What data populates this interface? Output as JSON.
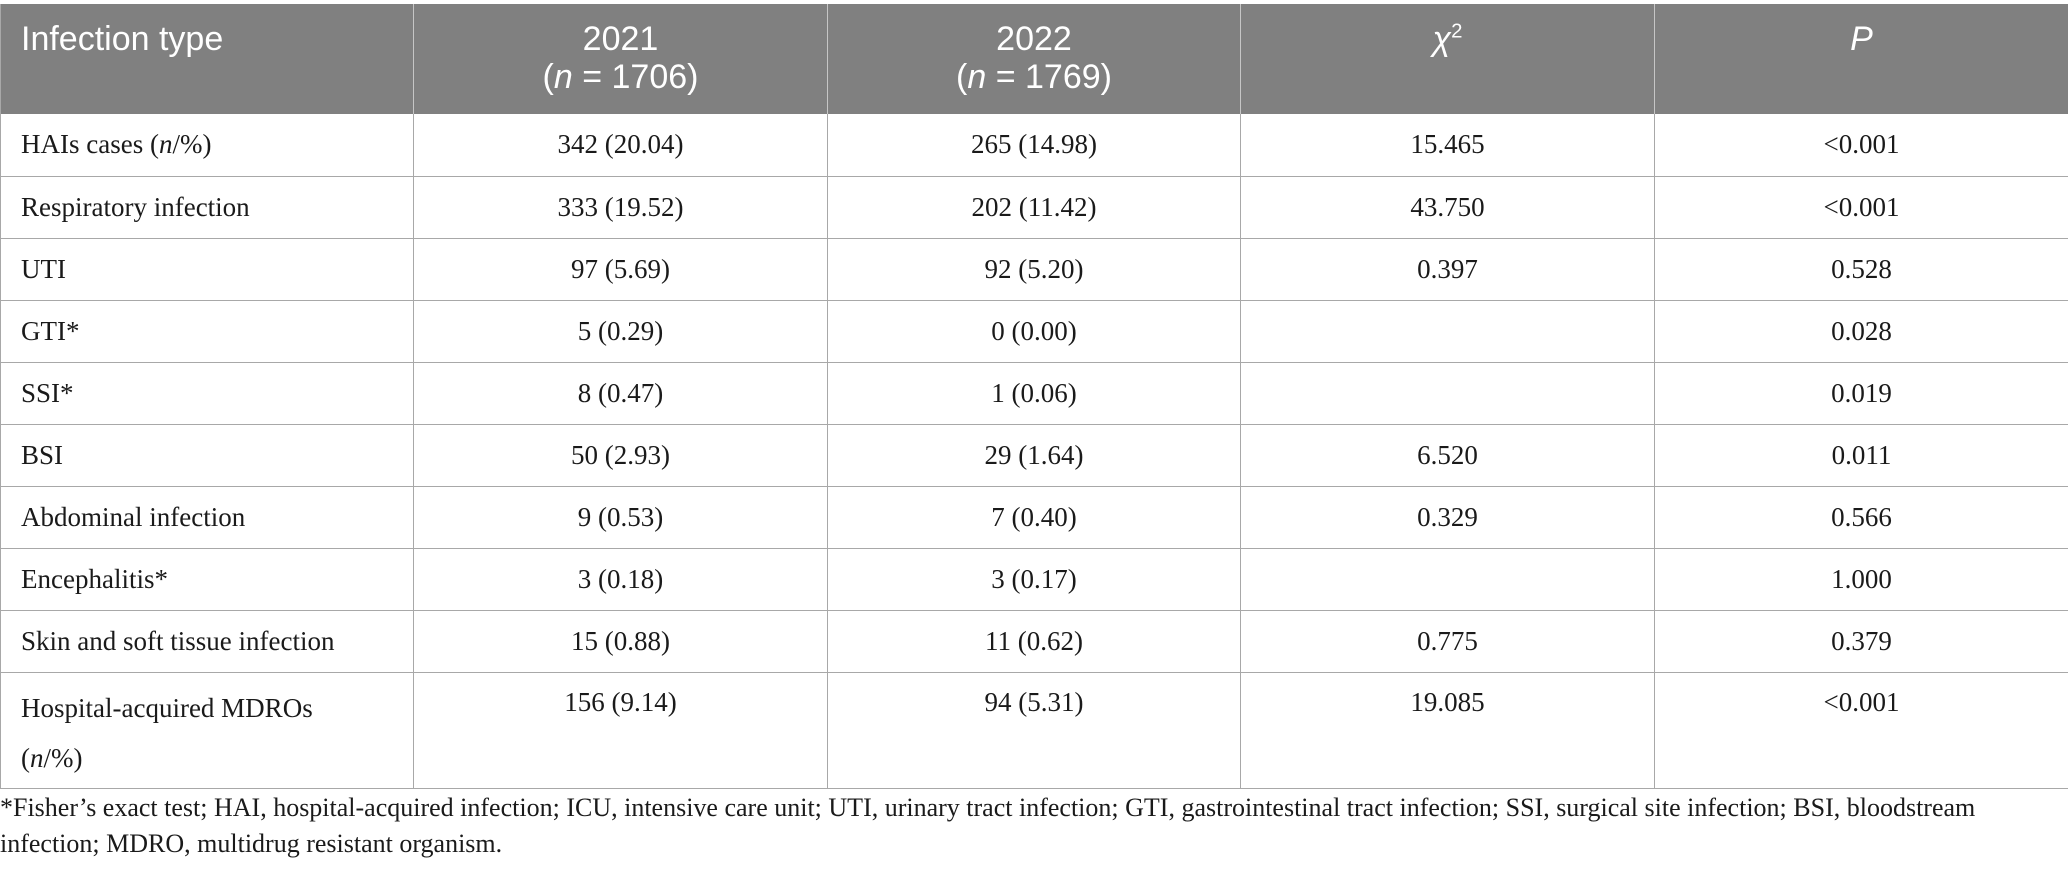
{
  "table": {
    "headers": {
      "infection_type": "Infection type",
      "y2021": "2021",
      "y2021_n": "(n = 1706)",
      "y2022": "2022",
      "y2022_n": "(n = 1769)",
      "chi2_symbol": "χ",
      "chi2_exponent": "2",
      "p": "P"
    },
    "rows": [
      {
        "label_pre": "HAIs cases (",
        "label_italic": "n",
        "label_post": "/%)",
        "y2021": "342 (20.04)",
        "y2022": "265 (14.98)",
        "chi2": "15.465",
        "p": "<0.001"
      },
      {
        "label_pre": "Respiratory infection",
        "label_italic": "",
        "label_post": "",
        "y2021": "333 (19.52)",
        "y2022": "202 (11.42)",
        "chi2": "43.750",
        "p": "<0.001"
      },
      {
        "label_pre": "UTI",
        "label_italic": "",
        "label_post": "",
        "y2021": "97 (5.69)",
        "y2022": "92 (5.20)",
        "chi2": "0.397",
        "p": "0.528"
      },
      {
        "label_pre": "GTI*",
        "label_italic": "",
        "label_post": "",
        "y2021": "5 (0.29)",
        "y2022": "0 (0.00)",
        "chi2": "",
        "p": "0.028"
      },
      {
        "label_pre": "SSI*",
        "label_italic": "",
        "label_post": "",
        "y2021": "8 (0.47)",
        "y2022": "1 (0.06)",
        "chi2": "",
        "p": "0.019"
      },
      {
        "label_pre": "BSI",
        "label_italic": "",
        "label_post": "",
        "y2021": "50 (2.93)",
        "y2022": "29 (1.64)",
        "chi2": "6.520",
        "p": "0.011"
      },
      {
        "label_pre": "Abdominal infection",
        "label_italic": "",
        "label_post": "",
        "y2021": "9 (0.53)",
        "y2022": "7 (0.40)",
        "chi2": "0.329",
        "p": "0.566"
      },
      {
        "label_pre": "Encephalitis*",
        "label_italic": "",
        "label_post": "",
        "y2021": "3 (0.18)",
        "y2022": "3 (0.17)",
        "chi2": "",
        "p": "1.000"
      },
      {
        "label_pre": "Skin and soft tissue infection",
        "label_italic": "",
        "label_post": "",
        "y2021": "15 (0.88)",
        "y2022": "11 (0.62)",
        "chi2": "0.775",
        "p": "0.379"
      },
      {
        "label_pre": "Hospital-acquired MDROs",
        "label_line2_pre": "(",
        "label_italic": "n",
        "label_post": "/%)",
        "y2021": "156 (9.14)",
        "y2022": "94 (5.31)",
        "chi2": "19.085",
        "p": "<0.001"
      }
    ]
  },
  "footnote": "*Fisher’s exact test; HAI, hospital-acquired infection; ICU, intensive care unit; UTI, urinary tract infection; GTI, gastrointestinal tract infection; SSI, surgical site infection; BSI, bloodstream infection; MDRO, multidrug resistant organism.",
  "colors": {
    "header_bg": "#808080",
    "header_text": "#ffffff",
    "grid": "#a8a8a8"
  }
}
